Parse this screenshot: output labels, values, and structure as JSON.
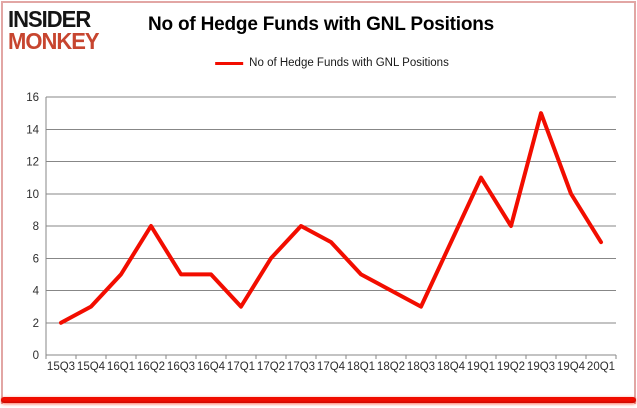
{
  "header": {
    "logo_line1": "INSIDER",
    "logo_line2": "MONKEY",
    "title": "No of Hedge Funds with GNL Positions"
  },
  "legend": {
    "label": "No of Hedge Funds with GNL Positions"
  },
  "colors": {
    "line_red": "#f20d00",
    "grid": "#878787",
    "axis": "#878787",
    "axis_text": "#2e2e2e",
    "logo_black": "#151515",
    "logo_red": "#c7452f",
    "frame_pink": "#e2a6a4",
    "bottom_bar_red": "#f20d00"
  },
  "chart_data": {
    "type": "line",
    "title": "No of Hedge Funds with GNL Positions",
    "categories": [
      "15Q3",
      "15Q4",
      "16Q1",
      "16Q2",
      "16Q3",
      "16Q4",
      "17Q1",
      "17Q2",
      "17Q3",
      "17Q4",
      "18Q1",
      "18Q2",
      "18Q3",
      "18Q4",
      "19Q1",
      "19Q2",
      "19Q3",
      "19Q4",
      "20Q1"
    ],
    "series": [
      {
        "name": "No of Hedge Funds with GNL Positions",
        "values": [
          2,
          3,
          5,
          8,
          5,
          5,
          3,
          6,
          8,
          7,
          5,
          4,
          3,
          7,
          11,
          8,
          15,
          10,
          7
        ],
        "color": "#f20d00"
      }
    ],
    "xlabel": "",
    "ylabel": "",
    "ylim": [
      0,
      16
    ],
    "y_tick_step": 2,
    "grid": true,
    "legend_position": "top"
  }
}
